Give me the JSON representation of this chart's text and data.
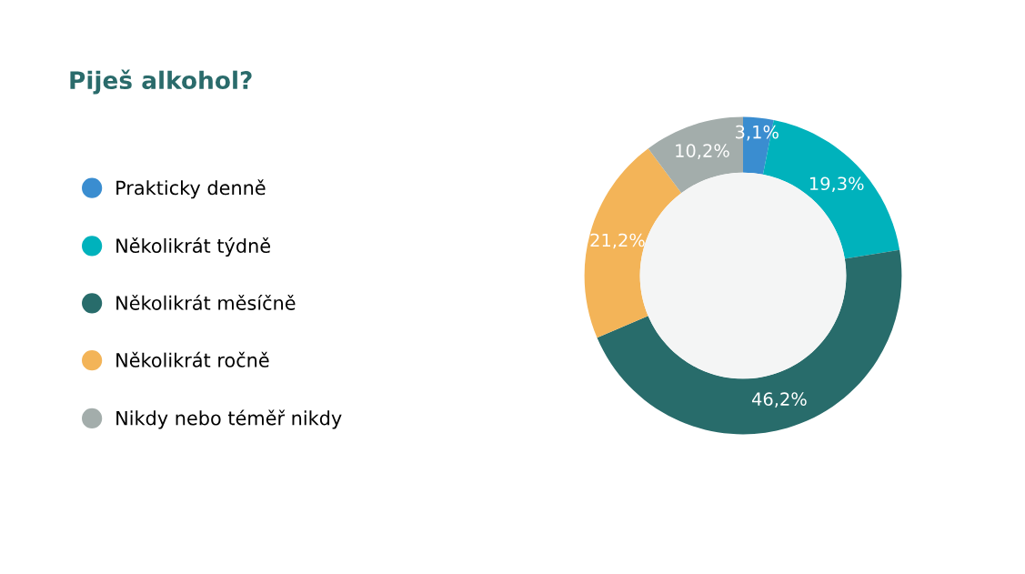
{
  "chart_data": {
    "type": "donut",
    "title": "Piješ alkohol?",
    "categories": [
      "Prakticky denně",
      "Několikrát týdně",
      "Několikrát měsíčně",
      "Několikrát ročně",
      "Nikdy nebo téměř nikdy"
    ],
    "values": [
      3.1,
      19.3,
      46.2,
      21.2,
      10.2
    ],
    "colors": [
      "#3a8dd0",
      "#00b2bc",
      "#286c6b",
      "#f3b458",
      "#a3adab"
    ],
    "value_labels": [
      "3,1%",
      "19,3%",
      "46,2%",
      "21,2%",
      "10,2%"
    ],
    "legend": "left"
  }
}
